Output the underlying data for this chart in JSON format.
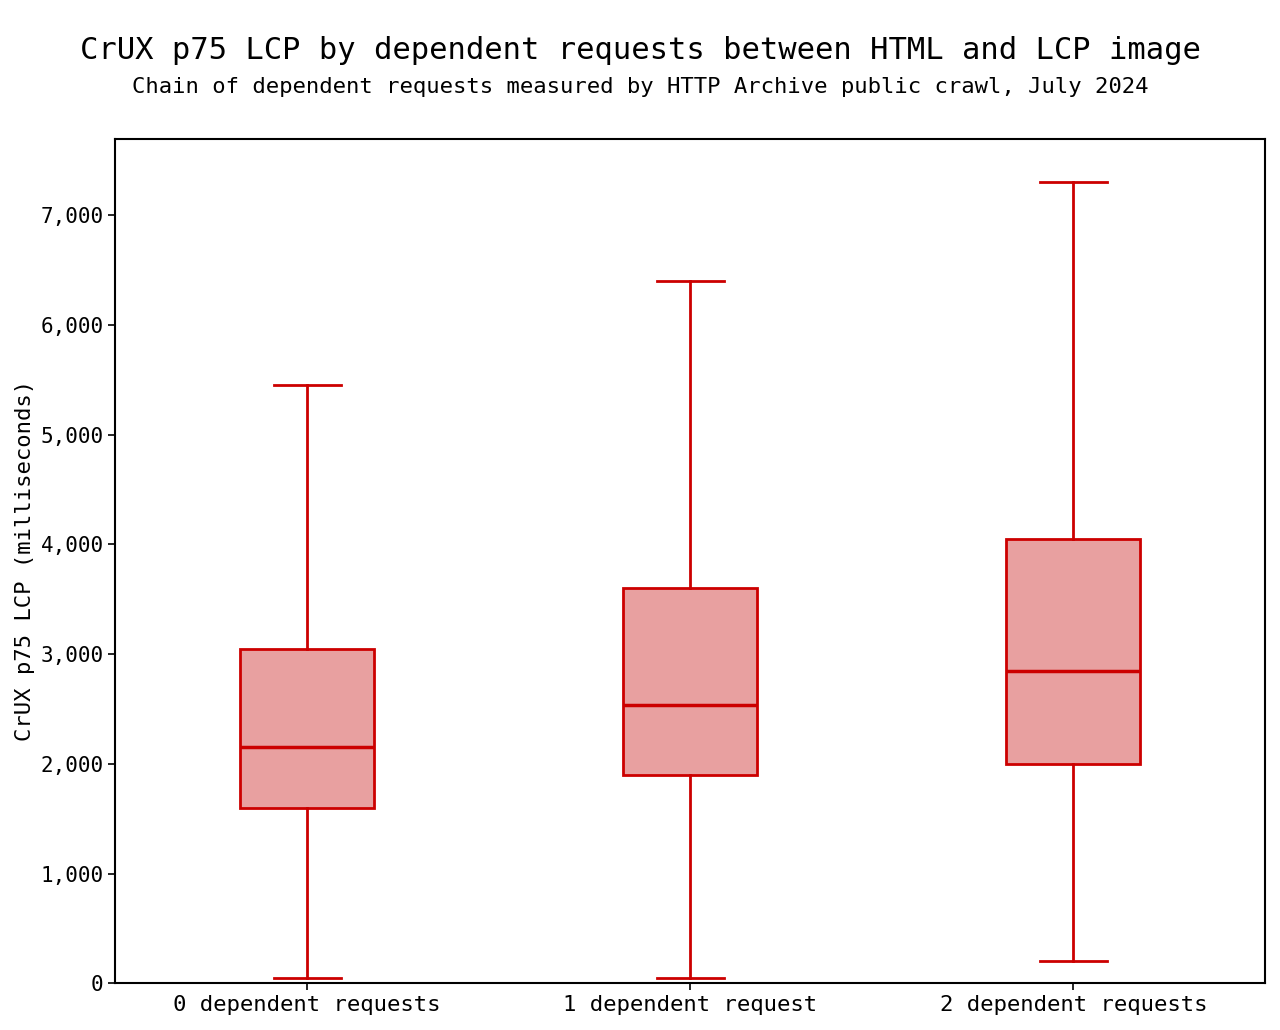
{
  "title": "CrUX p75 LCP by dependent requests between HTML and LCP image",
  "subtitle": "Chain of dependent requests measured by HTTP Archive public crawl, July 2024",
  "ylabel": "CrUX p75 LCP (milliseconds)",
  "categories": [
    "0 dependent requests",
    "1 dependent request",
    "2 dependent requests"
  ],
  "boxes": [
    {
      "whisker_low": 50,
      "q1": 1600,
      "median": 2150,
      "q3": 3050,
      "whisker_high": 5450
    },
    {
      "whisker_low": 50,
      "q1": 1900,
      "median": 2540,
      "q3": 3600,
      "whisker_high": 6400
    },
    {
      "whisker_low": 200,
      "q1": 2000,
      "median": 2850,
      "q3": 4050,
      "whisker_high": 7300
    }
  ],
  "ylim": [
    0,
    7700
  ],
  "yticks": [
    0,
    1000,
    2000,
    3000,
    4000,
    5000,
    6000,
    7000
  ],
  "box_color": "#e8a0a0",
  "line_color": "#cc0000",
  "line_width": 2.0,
  "title_fontsize": 22,
  "subtitle_fontsize": 16,
  "tick_fontsize": 15,
  "ylabel_fontsize": 16,
  "xlabel_fontsize": 16,
  "background_color": "#ffffff",
  "box_width": 0.35,
  "cap_ratio": 0.5
}
